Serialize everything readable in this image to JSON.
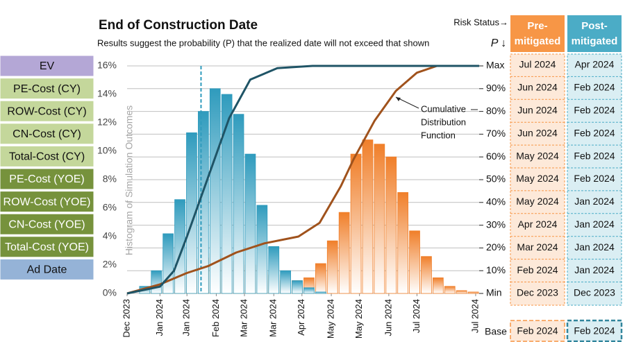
{
  "sidebar": [
    {
      "label": "EV",
      "color": "#b4a7d6"
    },
    {
      "label": "PE-Cost (CY)",
      "color": "#c4d79b"
    },
    {
      "label": "ROW-Cost (CY)",
      "color": "#c4d79b"
    },
    {
      "label": "CN-Cost (CY)",
      "color": "#c4d79b"
    },
    {
      "label": "Total-Cost (CY)",
      "color": "#c4d79b"
    },
    {
      "label": "PE-Cost (YOE)",
      "color": "#76923c"
    },
    {
      "label": "ROW-Cost (YOE)",
      "color": "#76923c"
    },
    {
      "label": "CN-Cost (YOE)",
      "color": "#76923c"
    },
    {
      "label": "Total-Cost (YOE)",
      "color": "#76923c"
    },
    {
      "label": "Ad Date",
      "color": "#95b3d7"
    }
  ],
  "chart_data": {
    "type": "histogram",
    "title": "End of Construction Date",
    "subtitle": "Results suggest the probability (P) that the realized date will not exceed that shown",
    "y_label": "Histogram of Simulation Outcomes",
    "annotation": [
      "Cumulative",
      "Distribution",
      "Function"
    ],
    "bins": [
      0,
      1,
      2,
      3,
      4,
      5,
      6,
      7,
      8,
      9,
      10,
      11,
      12,
      13,
      14,
      15,
      16,
      17,
      18,
      19,
      20,
      21,
      22,
      23,
      24,
      25,
      26,
      27,
      28,
      29,
      30
    ],
    "xlim": [
      0,
      30
    ],
    "xticks": [
      {
        "value": 0,
        "label": "Dec 2023"
      },
      {
        "value": 2.8,
        "label": "Jan 2024"
      },
      {
        "value": 5.1,
        "label": "Jan 2024"
      },
      {
        "value": 7.6,
        "label": "Feb 2024"
      },
      {
        "value": 10,
        "label": "Mar 2024"
      },
      {
        "value": 12.5,
        "label": "Mar 2024"
      },
      {
        "value": 14.9,
        "label": "Apr 2024"
      },
      {
        "value": 17.4,
        "label": "May 2024"
      },
      {
        "value": 19.8,
        "label": "May 2024"
      },
      {
        "value": 22.3,
        "label": "Jun 2024"
      },
      {
        "value": 24.7,
        "label": "Jul 2024"
      },
      {
        "value": 29.7,
        "label": "Jul 2024"
      }
    ],
    "ylim": [
      0,
      16
    ],
    "yticks": [
      {
        "value": 0,
        "label": "0%"
      },
      {
        "value": 2,
        "label": "2%"
      },
      {
        "value": 4,
        "label": "4%"
      },
      {
        "value": 6,
        "label": "6%"
      },
      {
        "value": 8,
        "label": "8%"
      },
      {
        "value": 10,
        "label": "10%"
      },
      {
        "value": 12,
        "label": "12%"
      },
      {
        "value": 14,
        "label": "14%"
      },
      {
        "value": 16,
        "label": "16%"
      }
    ],
    "y2lim": [
      0,
      100
    ],
    "y2ticks": [
      {
        "value": 0,
        "label": "Min"
      },
      {
        "value": 10,
        "label": "10%"
      },
      {
        "value": 20,
        "label": "20%"
      },
      {
        "value": 30,
        "label": "30%"
      },
      {
        "value": 40,
        "label": "40%"
      },
      {
        "value": 50,
        "label": "50%"
      },
      {
        "value": 60,
        "label": "60%"
      },
      {
        "value": 70,
        "label": "70%"
      },
      {
        "value": 80,
        "label": "80%"
      },
      {
        "value": 90,
        "label": "90%"
      },
      {
        "value": 100,
        "label": "Max"
      }
    ],
    "grid": true,
    "series": [
      {
        "color": "#f07f2a",
        "values": [
          0,
          0.1,
          0.3,
          0.7,
          1.5,
          2.4,
          2.5,
          2.8,
          2.5,
          2.3,
          2.0,
          1.5,
          1.3,
          0.9,
          0.9,
          1.1,
          2.1,
          3.7,
          5.7,
          9.8,
          10.8,
          10.5,
          9.6,
          7.1,
          4.4,
          2.6,
          1.1,
          0.5,
          0.2,
          0.1
        ]
      },
      {
        "color": "#2f9bbd",
        "values": [
          0,
          0.5,
          1.6,
          4.2,
          6.6,
          11.3,
          12.8,
          14.4,
          14.0,
          12.6,
          9.8,
          6.2,
          3.3,
          1.6,
          0.9,
          0.4,
          0.1,
          0,
          0,
          0,
          0,
          0,
          0,
          0,
          0,
          0,
          0,
          0,
          0,
          0
        ]
      }
    ],
    "lines": [
      {
        "color": "#a0521c",
        "axis": "y2",
        "x": [
          0,
          2.8,
          5.1,
          6.9,
          9.3,
          11.7,
          14.6,
          16.4,
          18.2,
          19.3,
          21.1,
          22.9,
          24.7,
          26.4,
          30
        ],
        "values": [
          0,
          4,
          9,
          12,
          18,
          22,
          25,
          31,
          47,
          59,
          76,
          89,
          97,
          100,
          100
        ]
      },
      {
        "color": "#1f5466",
        "axis": "y2",
        "x": [
          0,
          2.8,
          4,
          5.1,
          6.9,
          8.7,
          10.5,
          12.8,
          15.8,
          30
        ],
        "values": [
          0,
          3,
          10,
          25,
          51,
          77,
          94,
          99,
          100,
          100
        ]
      }
    ],
    "marker_x": 6.3,
    "marker_color": "#2f9bbd"
  },
  "table": {
    "risk_status": "Risk Status→",
    "p_label": "P ↓",
    "columns": [
      [
        "Pre-",
        "mitigated"
      ],
      [
        "Post-",
        "mitigated"
      ]
    ],
    "column_colors": [
      "#f79646",
      "#4bacc6"
    ],
    "cell_colors": [
      "#fde9d9",
      "#daeef3"
    ],
    "rows": [
      [
        "Jul 2024",
        "Apr 2024"
      ],
      [
        "Jun 2024",
        "Feb 2024"
      ],
      [
        "Jun 2024",
        "Feb 2024"
      ],
      [
        "Jun 2024",
        "Feb 2024"
      ],
      [
        "May 2024",
        "Feb 2024"
      ],
      [
        "May 2024",
        "Feb 2024"
      ],
      [
        "May 2024",
        "Jan 2024"
      ],
      [
        "Apr 2024",
        "Jan 2024"
      ],
      [
        "Mar 2024",
        "Jan 2024"
      ],
      [
        "Feb 2024",
        "Jan 2024"
      ],
      [
        "Dec 2023",
        "Dec 2023"
      ]
    ],
    "base_label": "Base",
    "base": [
      "Feb 2024",
      "Feb 2024"
    ]
  }
}
